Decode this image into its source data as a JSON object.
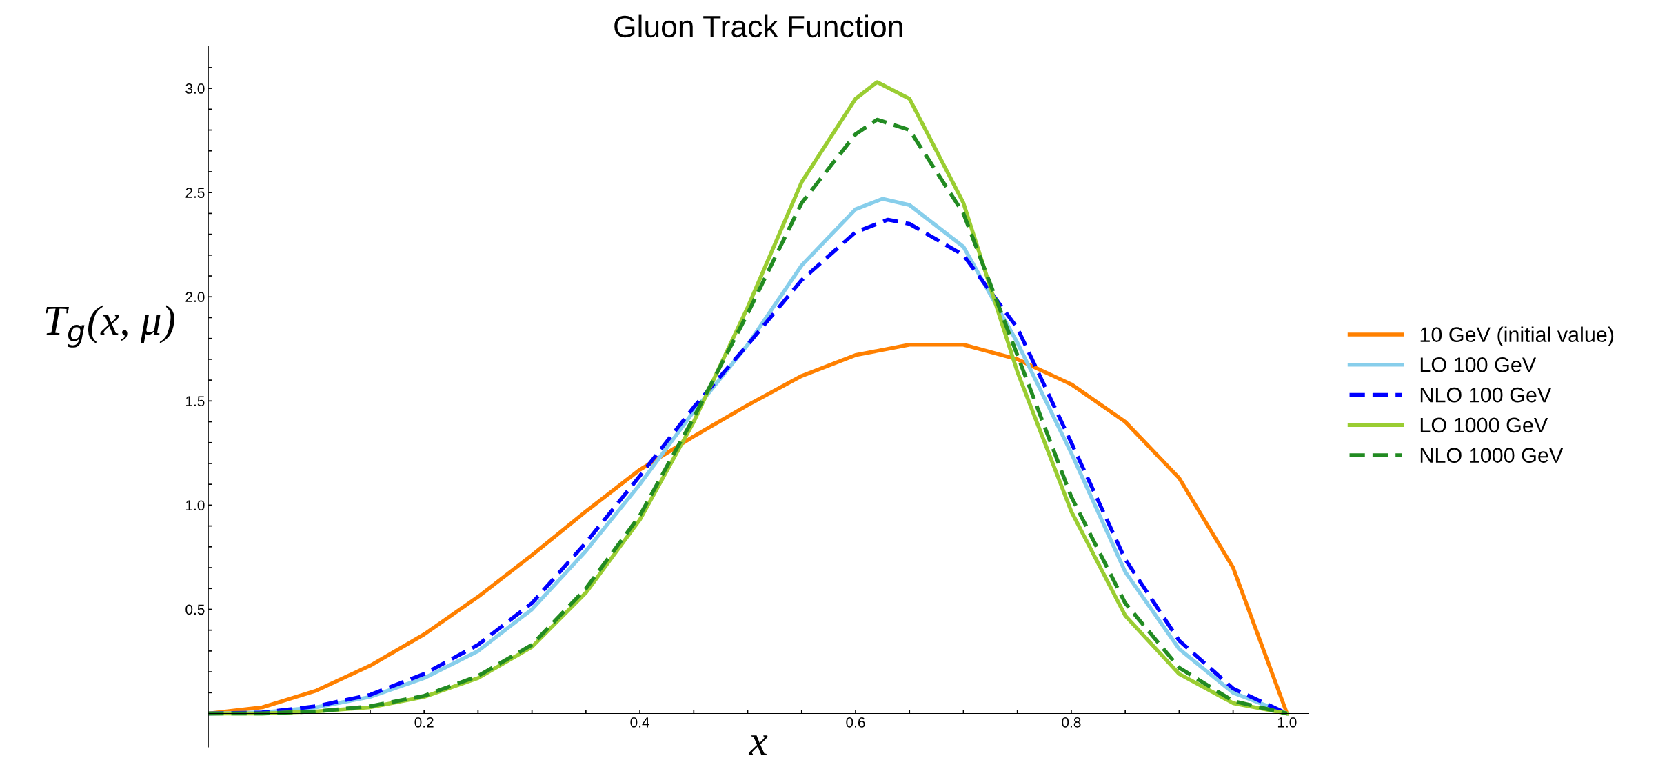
{
  "chart_data": {
    "type": "line",
    "title": "Gluon Track Function",
    "xlabel": "x",
    "ylabel": "T$_{g}$(x, μ)",
    "xlim": [
      0,
      1.02
    ],
    "ylim": [
      -0.16,
      3.2
    ],
    "xticks": [
      {
        "value": 0.05,
        "label": null
      },
      {
        "value": 0.1,
        "label": null
      },
      {
        "value": 0.15,
        "label": null
      },
      {
        "value": 0.2,
        "label": "0.2"
      },
      {
        "value": 0.25,
        "label": null
      },
      {
        "value": 0.3,
        "label": null
      },
      {
        "value": 0.35,
        "label": null
      },
      {
        "value": 0.4,
        "label": "0.4"
      },
      {
        "value": 0.45,
        "label": null
      },
      {
        "value": 0.5,
        "label": null
      },
      {
        "value": 0.55,
        "label": null
      },
      {
        "value": 0.6,
        "label": "0.6"
      },
      {
        "value": 0.65,
        "label": null
      },
      {
        "value": 0.7,
        "label": null
      },
      {
        "value": 0.75,
        "label": null
      },
      {
        "value": 0.8,
        "label": "0.8"
      },
      {
        "value": 0.85,
        "label": null
      },
      {
        "value": 0.9,
        "label": null
      },
      {
        "value": 0.95,
        "label": null
      },
      {
        "value": 1.0,
        "label": "1.0"
      }
    ],
    "yticks": [
      {
        "value": 0.1,
        "label": null
      },
      {
        "value": 0.2,
        "label": null
      },
      {
        "value": 0.3,
        "label": null
      },
      {
        "value": 0.4,
        "label": null
      },
      {
        "value": 0.5,
        "label": "0.5"
      },
      {
        "value": 0.6,
        "label": null
      },
      {
        "value": 0.7,
        "label": null
      },
      {
        "value": 0.8,
        "label": null
      },
      {
        "value": 0.9,
        "label": null
      },
      {
        "value": 1.0,
        "label": "1.0"
      },
      {
        "value": 1.1,
        "label": null
      },
      {
        "value": 1.2,
        "label": null
      },
      {
        "value": 1.3,
        "label": null
      },
      {
        "value": 1.4,
        "label": null
      },
      {
        "value": 1.5,
        "label": "1.5"
      },
      {
        "value": 1.6,
        "label": null
      },
      {
        "value": 1.7,
        "label": null
      },
      {
        "value": 1.8,
        "label": null
      },
      {
        "value": 1.9,
        "label": null
      },
      {
        "value": 2.0,
        "label": "2.0"
      },
      {
        "value": 2.1,
        "label": null
      },
      {
        "value": 2.2,
        "label": null
      },
      {
        "value": 2.3,
        "label": null
      },
      {
        "value": 2.4,
        "label": null
      },
      {
        "value": 2.5,
        "label": "2.5"
      },
      {
        "value": 2.6,
        "label": null
      },
      {
        "value": 2.7,
        "label": null
      },
      {
        "value": 2.8,
        "label": null
      },
      {
        "value": 2.9,
        "label": null
      },
      {
        "value": 3.0,
        "label": "3.0"
      },
      {
        "value": 3.1,
        "label": null
      }
    ],
    "grid": false,
    "legend": "right",
    "marker": "none",
    "series": [
      {
        "name": "10 GeV (initial value)",
        "color": "#ff8000",
        "line_style": "solid",
        "x": [
          0,
          0.05,
          0.1,
          0.15,
          0.2,
          0.25,
          0.3,
          0.35,
          0.4,
          0.45,
          0.5,
          0.55,
          0.6,
          0.65,
          0.7,
          0.75,
          0.8,
          0.85,
          0.9,
          0.95,
          1.0
        ],
        "values": [
          0,
          0.03,
          0.11,
          0.23,
          0.38,
          0.56,
          0.76,
          0.97,
          1.17,
          1.33,
          1.48,
          1.62,
          1.72,
          1.77,
          1.77,
          1.7,
          1.58,
          1.4,
          1.13,
          0.7,
          0
        ]
      },
      {
        "name": "LO 100 GeV",
        "color": "#87ceeb",
        "line_style": "solid",
        "x": [
          0,
          0.05,
          0.1,
          0.15,
          0.2,
          0.25,
          0.3,
          0.35,
          0.4,
          0.45,
          0.5,
          0.55,
          0.6,
          0.625,
          0.65,
          0.7,
          0.75,
          0.8,
          0.85,
          0.9,
          0.95,
          1.0
        ],
        "values": [
          0,
          0.005,
          0.03,
          0.08,
          0.17,
          0.3,
          0.5,
          0.78,
          1.1,
          1.45,
          1.77,
          2.15,
          2.42,
          2.47,
          2.44,
          2.24,
          1.78,
          1.25,
          0.68,
          0.31,
          0.1,
          0
        ]
      },
      {
        "name": "NLO 100 GeV",
        "color": "#0000ff",
        "line_style": "dashed",
        "x": [
          0,
          0.05,
          0.1,
          0.15,
          0.2,
          0.25,
          0.3,
          0.35,
          0.4,
          0.45,
          0.5,
          0.55,
          0.6,
          0.63,
          0.65,
          0.7,
          0.75,
          0.8,
          0.85,
          0.9,
          0.95,
          1.0
        ],
        "values": [
          0,
          0.005,
          0.035,
          0.09,
          0.19,
          0.33,
          0.53,
          0.82,
          1.14,
          1.47,
          1.77,
          2.08,
          2.31,
          2.37,
          2.35,
          2.2,
          1.85,
          1.3,
          0.74,
          0.35,
          0.12,
          0
        ]
      },
      {
        "name": "LO 1000 GeV",
        "color": "#9acd32",
        "line_style": "solid",
        "x": [
          0,
          0.05,
          0.1,
          0.15,
          0.2,
          0.25,
          0.3,
          0.35,
          0.4,
          0.45,
          0.5,
          0.55,
          0.6,
          0.62,
          0.65,
          0.7,
          0.75,
          0.8,
          0.85,
          0.9,
          0.95,
          1.0
        ],
        "values": [
          0,
          0.0,
          0.01,
          0.03,
          0.08,
          0.17,
          0.32,
          0.58,
          0.93,
          1.4,
          1.95,
          2.55,
          2.95,
          3.03,
          2.95,
          2.45,
          1.64,
          0.97,
          0.47,
          0.19,
          0.05,
          0
        ]
      },
      {
        "name": "NLO 1000 GeV",
        "color": "#228b22",
        "line_style": "dashed",
        "x": [
          0,
          0.05,
          0.1,
          0.15,
          0.2,
          0.25,
          0.3,
          0.35,
          0.4,
          0.45,
          0.5,
          0.55,
          0.6,
          0.62,
          0.65,
          0.7,
          0.75,
          0.8,
          0.85,
          0.9,
          0.95,
          1.0
        ],
        "values": [
          0,
          0.0,
          0.01,
          0.035,
          0.085,
          0.18,
          0.33,
          0.6,
          0.95,
          1.42,
          1.92,
          2.45,
          2.78,
          2.85,
          2.8,
          2.4,
          1.72,
          1.04,
          0.53,
          0.22,
          0.06,
          0
        ]
      }
    ]
  }
}
